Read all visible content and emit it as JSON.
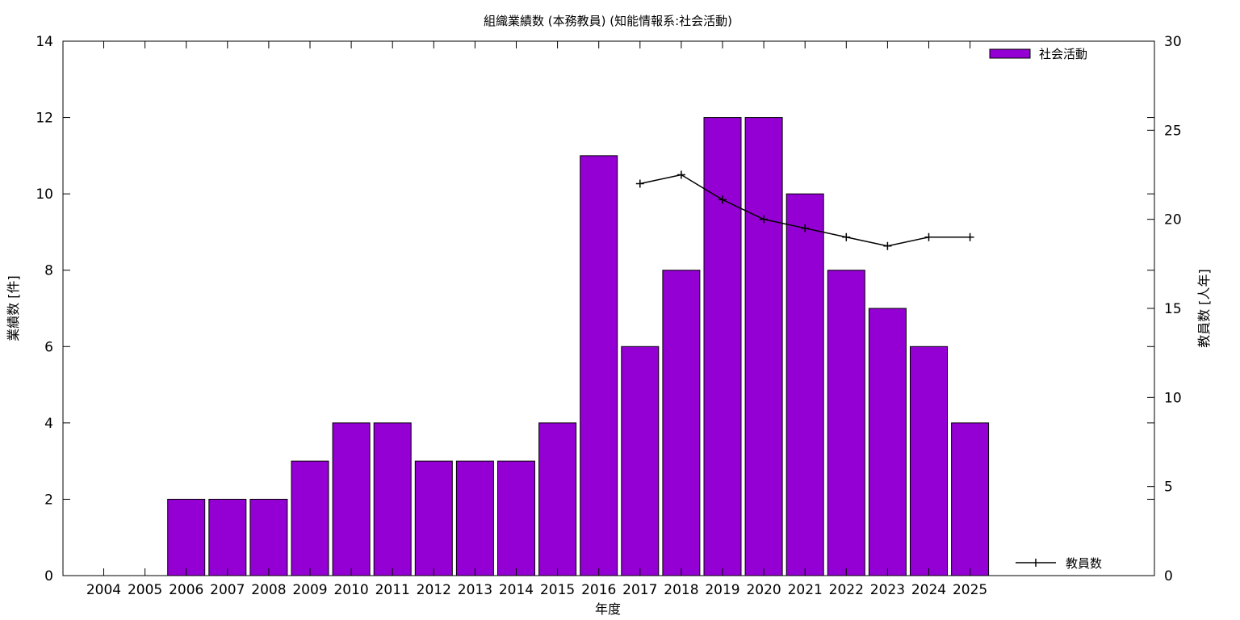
{
  "chart_data": {
    "type": "bar",
    "title": "組織業績数 (本務教員) (知能情報系:社会活動)",
    "xlabel": "年度",
    "ylabel": "業績数 [件]",
    "y2label": "教員数 [人年]",
    "categories": [
      "2004",
      "2005",
      "2006",
      "2007",
      "2008",
      "2009",
      "2010",
      "2011",
      "2012",
      "2013",
      "2014",
      "2015",
      "2016",
      "2017",
      "2018",
      "2019",
      "2020",
      "2021",
      "2022",
      "2023",
      "2024",
      "2025"
    ],
    "ylim": [
      0,
      14
    ],
    "y_ticks": [
      "0",
      "2",
      "4",
      "6",
      "8",
      "10",
      "12",
      "14"
    ],
    "y2lim": [
      0,
      30
    ],
    "y2_ticks": [
      "0",
      "5",
      "10",
      "15",
      "20",
      "25",
      "30"
    ],
    "grid": false,
    "legend_placement": "top-right",
    "series": [
      {
        "name": "社会活動",
        "type": "bar",
        "axis": "left",
        "color": "#9400d3",
        "values": [
          0,
          0,
          2,
          2,
          2,
          3,
          4,
          4,
          3,
          3,
          3,
          4,
          11,
          6,
          8,
          12,
          12,
          10,
          8,
          7,
          6,
          4
        ]
      },
      {
        "name": "教員数",
        "type": "line",
        "axis": "right",
        "color": "#000000",
        "x": [
          "2017",
          "2018",
          "2019",
          "2020",
          "2021",
          "2022",
          "2023",
          "2024",
          "2025"
        ],
        "values": [
          22.0,
          22.5,
          21.1,
          20.0,
          19.5,
          19.0,
          18.5,
          19.0,
          19.0
        ]
      }
    ]
  }
}
